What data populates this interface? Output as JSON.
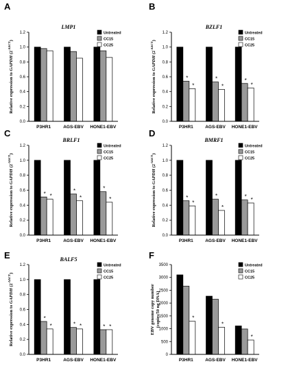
{
  "colors": {
    "Untreated": "#000000",
    "CC15": "#9a9a9a",
    "CC25": "#ffffff"
  },
  "legend": [
    "Untreated",
    "CC15",
    "CC25"
  ],
  "chart_data": [
    {
      "type": "bar",
      "panel": "A",
      "title": "LMP1",
      "categories": [
        "P3HR1",
        "AGS-EBV",
        "HONE1-EBV"
      ],
      "series": [
        {
          "name": "Untreated",
          "values": [
            1.0,
            1.0,
            1.0
          ]
        },
        {
          "name": "CC15",
          "values": [
            0.98,
            0.94,
            0.95
          ]
        },
        {
          "name": "CC25",
          "values": [
            0.95,
            0.85,
            0.86
          ]
        }
      ],
      "stars": [
        [
          false,
          false,
          false
        ],
        [
          false,
          false,
          false
        ],
        [
          false,
          false,
          false
        ]
      ],
      "ylabel_main": "Relative expression to ",
      "ylabel_gene": "GAPDH",
      "ylabel_expr": "(2",
      "ylabel_sup": "-ΔΔCT",
      "ylabel_close": ")",
      "ylim": [
        0,
        1.2
      ],
      "yticks": [
        "0.0",
        "0.2",
        "0.4",
        "0.6",
        "0.8",
        "1.0",
        "1.2"
      ],
      "legend": "top-right"
    },
    {
      "type": "bar",
      "panel": "B",
      "title": "BZLF1",
      "categories": [
        "P3HR1",
        "AGS-EBV",
        "HONE1-EBV"
      ],
      "series": [
        {
          "name": "Untreated",
          "values": [
            1.0,
            1.0,
            1.0
          ]
        },
        {
          "name": "CC15",
          "values": [
            0.54,
            0.53,
            0.51
          ]
        },
        {
          "name": "CC25",
          "values": [
            0.44,
            0.43,
            0.45
          ]
        }
      ],
      "stars": [
        [
          false,
          false,
          false
        ],
        [
          true,
          true,
          true
        ],
        [
          true,
          true,
          true
        ]
      ],
      "ylabel_main": "Relative expression to ",
      "ylabel_gene": "GAPDH",
      "ylabel_expr": "(2",
      "ylabel_sup": "-ΔΔCT",
      "ylabel_close": ")",
      "ylim": [
        0,
        1.2
      ],
      "yticks": [
        "0.0",
        "0.2",
        "0.4",
        "0.6",
        "0.8",
        "1.0",
        "1.2"
      ],
      "legend": "top-right"
    },
    {
      "type": "bar",
      "panel": "C",
      "title": "BRLF1",
      "categories": [
        "P3HR1",
        "AGS-EBV",
        "HONE1-EBV"
      ],
      "series": [
        {
          "name": "Untreated",
          "values": [
            1.0,
            1.0,
            1.0
          ]
        },
        {
          "name": "CC15",
          "values": [
            0.51,
            0.55,
            0.58
          ]
        },
        {
          "name": "CC25",
          "values": [
            0.48,
            0.46,
            0.44
          ]
        }
      ],
      "stars": [
        [
          false,
          false,
          false
        ],
        [
          true,
          true,
          true
        ],
        [
          true,
          true,
          true
        ]
      ],
      "ylabel_main": "Relative expression to ",
      "ylabel_gene": "GAPDH",
      "ylabel_expr": "(2",
      "ylabel_sup": "-ΔΔCT",
      "ylabel_close": ")",
      "ylim": [
        0,
        1.2
      ],
      "yticks": [
        "0.0",
        "0.2",
        "0.4",
        "0.6",
        "0.8",
        "1.0",
        "1.2"
      ],
      "legend": "top-right"
    },
    {
      "type": "bar",
      "panel": "D",
      "title": "BMRF1",
      "categories": [
        "P3HR1",
        "AGS-EBV",
        "HONE1-EBV"
      ],
      "series": [
        {
          "name": "Untreated",
          "values": [
            1.0,
            1.0,
            1.0
          ]
        },
        {
          "name": "CC15",
          "values": [
            0.46,
            0.48,
            0.47
          ]
        },
        {
          "name": "CC25",
          "values": [
            0.39,
            0.33,
            0.43
          ]
        }
      ],
      "stars": [
        [
          false,
          false,
          false
        ],
        [
          true,
          true,
          true
        ],
        [
          true,
          true,
          true
        ]
      ],
      "ylabel_main": "Relative expression to ",
      "ylabel_gene": "GAPDH",
      "ylabel_expr": "(2",
      "ylabel_sup": "-ΔΔCT",
      "ylabel_close": ")",
      "ylim": [
        0,
        1.2
      ],
      "yticks": [
        "0.0",
        "0.2",
        "0.4",
        "0.6",
        "0.8",
        "1.0",
        "1.2"
      ],
      "legend": "top-right"
    },
    {
      "type": "bar",
      "panel": "E",
      "title": "BALF5",
      "categories": [
        "P3HR1",
        "AGS-EBV",
        "HONE1-EBV"
      ],
      "series": [
        {
          "name": "Untreated",
          "values": [
            1.0,
            1.0,
            1.0
          ]
        },
        {
          "name": "CC15",
          "values": [
            0.44,
            0.36,
            0.33
          ]
        },
        {
          "name": "CC25",
          "values": [
            0.34,
            0.34,
            0.33
          ]
        }
      ],
      "stars": [
        [
          false,
          false,
          false
        ],
        [
          true,
          true,
          true
        ],
        [
          true,
          true,
          true
        ]
      ],
      "ylabel_main": "Relative expression to ",
      "ylabel_gene": "GAPDH",
      "ylabel_expr": "(2",
      "ylabel_sup": "-ΔΔCT",
      "ylabel_close": ")",
      "ylim": [
        0,
        1.2
      ],
      "yticks": [
        "0.0",
        "0.2",
        "0.4",
        "0.6",
        "0.8",
        "1.0",
        "1.2"
      ],
      "legend": "top-right"
    },
    {
      "type": "bar",
      "panel": "F",
      "title": "",
      "categories": [
        "P3HR1",
        "AGS-EBV",
        "HONE1-EBV"
      ],
      "series": [
        {
          "name": "Untreated",
          "values": [
            3100,
            2270,
            1110
          ]
        },
        {
          "name": "CC15",
          "values": [
            2660,
            2150,
            990
          ]
        },
        {
          "name": "CC25",
          "values": [
            1290,
            1060,
            560
          ]
        }
      ],
      "stars": [
        [
          false,
          false,
          false
        ],
        [
          false,
          false,
          false
        ],
        [
          true,
          true,
          true
        ]
      ],
      "ylabel_line1": "EBV genome copy number",
      "ylabel_line2": "(copies/50 ng DNA)",
      "ylim": [
        0,
        3500
      ],
      "yticks": [
        "0",
        "500",
        "1000",
        "1500",
        "2000",
        "2500",
        "3000",
        "3500"
      ],
      "legend": "top-right"
    }
  ]
}
